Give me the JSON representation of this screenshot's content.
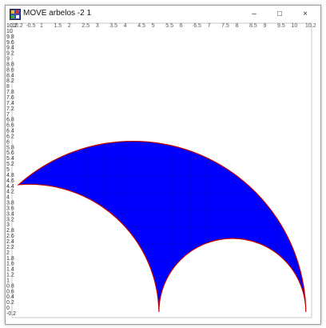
{
  "window": {
    "title": "MOVE arbelos -2 1",
    "min_glyph": "–",
    "max_glyph": "□",
    "close_glyph": "×",
    "icon": "app-icon"
  },
  "plot": {
    "x_tick_text": [
      "10.2",
      "-0.5",
      "1",
      "1.5",
      "2",
      "2.5",
      "3",
      "3.5",
      "4",
      "4.5",
      "5",
      "5.5",
      "6",
      "6.5",
      "7",
      "7.5",
      "8",
      "8.5",
      "9",
      "9.5",
      "10",
      "10.2"
    ],
    "y_tick_labels": [
      "10.2",
      "10",
      "9.8",
      "9.6",
      "9.4",
      "9.2",
      "9",
      "8.8",
      "8.6",
      "8.4",
      "8.2",
      "8",
      "7.8",
      "7.6",
      "7.4",
      "7.2",
      "7",
      "6.8",
      "6.6",
      "6.4",
      "6.2",
      "6",
      "5.8",
      "5.6",
      "5.4",
      "5.2",
      "5",
      "4.8",
      "4.6",
      "4.4",
      "4.2",
      "4",
      "3.8",
      "3.6",
      "3.4",
      "3.2",
      "3",
      "2.8",
      "2.6",
      "2.4",
      "2.2",
      "2",
      "1.8",
      "1.6",
      "1.4",
      "1.2",
      "1",
      "0.8",
      "0.6",
      "0.4",
      "0.2",
      "0",
      "-0.2"
    ],
    "fill_color": "#0000ff",
    "edge_color": "#c00000",
    "mesh_color": "#000080",
    "arbelos": {
      "big_center": [
        4.0,
        0
      ],
      "big_radius": 6.0,
      "left_center": [
        -0.2,
        0
      ],
      "left_radius": 4.5,
      "right_center": [
        7.1,
        0
      ],
      "right_radius": 2.2
    }
  }
}
